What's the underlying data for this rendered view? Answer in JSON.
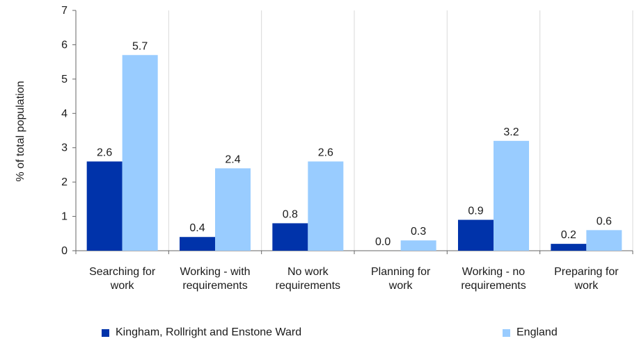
{
  "chart_data": {
    "type": "bar",
    "categories": [
      [
        "Searching for",
        "work"
      ],
      [
        "Working - with",
        "requirements"
      ],
      [
        "No work",
        "requirements"
      ],
      [
        "Planning for",
        "work"
      ],
      [
        "Working - no",
        "requirements"
      ],
      [
        "Preparing for",
        "work"
      ]
    ],
    "series": [
      {
        "name": "Kingham, Rollright and Enstone Ward",
        "color": "#0033aa",
        "values": [
          2.6,
          0.4,
          0.8,
          0.0,
          0.9,
          0.2
        ]
      },
      {
        "name": "England",
        "color": "#99ccff",
        "values": [
          5.7,
          2.4,
          2.6,
          0.3,
          3.2,
          0.6
        ]
      }
    ],
    "ylabel": "% of total population",
    "ylim": [
      0,
      7
    ],
    "yticks": [
      0,
      1,
      2,
      3,
      4,
      5,
      6,
      7
    ],
    "grid": "vertical-category-separators",
    "legend": "bottom"
  }
}
